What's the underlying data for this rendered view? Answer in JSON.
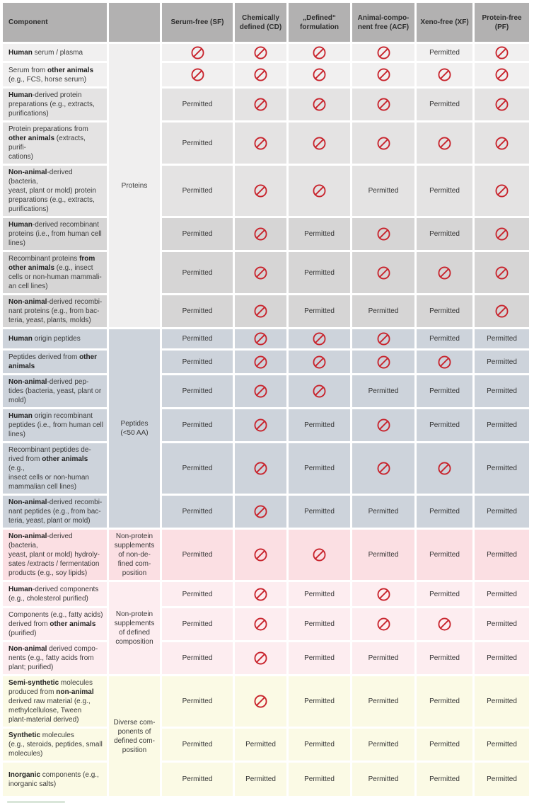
{
  "table": {
    "corner_header": "Component",
    "column_headers": [
      "Serum-free (SF)",
      "Chemically\ndefined (CD)",
      "„Defined“\nformulation",
      "Animal-compo-\nnent free (ACF)",
      "Xeno-free (XF)",
      "Protein-free\n(PF)"
    ],
    "permitted_label": "Permitted",
    "icons": {
      "prohibited": "no-entry-icon"
    },
    "colors": {
      "header_bg": "#b2b1b1",
      "prohibited_red": "#c8232c",
      "cell_border": "#ffffff"
    },
    "groups": [
      {
        "label": "Proteins",
        "cell_bg": "#f0efef",
        "rows": [
          {
            "bg": "#f1f0f0",
            "segments": [
              [
                "Human",
                1
              ],
              [
                " serum / plasma",
                0
              ]
            ],
            "values": [
              "x",
              "x",
              "x",
              "x",
              "p",
              "x"
            ]
          },
          {
            "bg": "#f1f0f0",
            "segments": [
              [
                "Serum from ",
                0
              ],
              [
                "other animals",
                1
              ],
              [
                "\n(e.g., FCS, horse serum)",
                0
              ]
            ],
            "values": [
              "x",
              "x",
              "x",
              "x",
              "x",
              "x"
            ]
          },
          {
            "bg": "#e4e3e3",
            "segments": [
              [
                "Human",
                1
              ],
              [
                "-derived protein\npreparations (e.g., extracts,\npurifications)",
                0
              ]
            ],
            "values": [
              "p",
              "x",
              "x",
              "x",
              "p",
              "x"
            ]
          },
          {
            "bg": "#e4e3e3",
            "segments": [
              [
                "Protein preparations from\n",
                0
              ],
              [
                "other animals",
                1
              ],
              [
                " (extracts, purifi-\ncations)",
                0
              ]
            ],
            "values": [
              "p",
              "x",
              "x",
              "x",
              "x",
              "x"
            ]
          },
          {
            "bg": "#e4e3e3",
            "segments": [
              [
                "Non-animal",
                1
              ],
              [
                "-derived (bacteria,\nyeast, plant or mold) protein\npreparations (e.g., extracts,\npurifications)",
                0
              ]
            ],
            "values": [
              "p",
              "x",
              "x",
              "p",
              "p",
              "x"
            ]
          },
          {
            "bg": "#d6d5d5",
            "segments": [
              [
                "Human",
                1
              ],
              [
                "-derived recombinant\nproteins (i.e., from human cell\nlines)",
                0
              ]
            ],
            "values": [
              "p",
              "x",
              "p",
              "x",
              "p",
              "x"
            ]
          },
          {
            "bg": "#d6d5d5",
            "segments": [
              [
                "Recombinant proteins ",
                0
              ],
              [
                "from\nother animals",
                1
              ],
              [
                " (e.g., insect\ncells or non-human mammali-\nan cell lines)",
                0
              ]
            ],
            "values": [
              "p",
              "x",
              "p",
              "x",
              "x",
              "x"
            ]
          },
          {
            "bg": "#d6d5d5",
            "segments": [
              [
                "Non-animal",
                1
              ],
              [
                "-derived recombi-\nnant proteins (e.g., from bac-\nteria, yeast, plants, molds)",
                0
              ]
            ],
            "values": [
              "p",
              "x",
              "p",
              "p",
              "p",
              "x"
            ]
          }
        ]
      },
      {
        "label": "Peptides\n(<50 AA)",
        "cell_bg": "#cdd3db",
        "rows": [
          {
            "bg": "#cdd3db",
            "segments": [
              [
                "Human",
                1
              ],
              [
                " origin peptides",
                0
              ]
            ],
            "values": [
              "p",
              "x",
              "x",
              "x",
              "p",
              "p"
            ]
          },
          {
            "bg": "#cdd3db",
            "segments": [
              [
                "Peptides derived from ",
                0
              ],
              [
                "other\nanimals",
                1
              ]
            ],
            "values": [
              "p",
              "x",
              "x",
              "x",
              "x",
              "p"
            ]
          },
          {
            "bg": "#cdd3db",
            "segments": [
              [
                "Non-animal",
                1
              ],
              [
                "-derived pep-\ntides (bacteria, yeast, plant or\nmold)",
                0
              ]
            ],
            "values": [
              "p",
              "x",
              "x",
              "p",
              "p",
              "p"
            ]
          },
          {
            "bg": "#cdd3db",
            "segments": [
              [
                "Human",
                1
              ],
              [
                " origin recombinant\npeptides (i.e., from human cell\nlines)",
                0
              ]
            ],
            "values": [
              "p",
              "x",
              "p",
              "x",
              "p",
              "p"
            ]
          },
          {
            "bg": "#cdd3db",
            "segments": [
              [
                "Recombinant peptides de-\nrived from ",
                0
              ],
              [
                "other animals",
                1
              ],
              [
                " (e.g.,\ninsect cells or non-human\nmammalian cell lines)",
                0
              ]
            ],
            "values": [
              "p",
              "x",
              "p",
              "x",
              "x",
              "p"
            ]
          },
          {
            "bg": "#cdd3db",
            "segments": [
              [
                "Non-animal",
                1
              ],
              [
                "-derived recombi-\nnant peptides (e.g., from bac-\nteria, yeast, plant or mold)",
                0
              ]
            ],
            "values": [
              "p",
              "x",
              "p",
              "p",
              "p",
              "p"
            ]
          }
        ]
      },
      {
        "label": "Non-protein\nsupplements\nof non-de-\nfined com-\nposition",
        "cell_bg": "#fbdfe3",
        "rows": [
          {
            "bg": "#fbdfe3",
            "segments": [
              [
                "Non-animal",
                1
              ],
              [
                "-derived (bacteria,\nyeast, plant or mold) hydroly-\nsates /extracts / fermentation\nproducts (e.g., soy lipids)",
                0
              ]
            ],
            "values": [
              "p",
              "x",
              "x",
              "p",
              "p",
              "p"
            ]
          }
        ]
      },
      {
        "label": "Non-protein\nsupplements\nof defined\ncomposition",
        "cell_bg": "#fdedf0",
        "rows": [
          {
            "bg": "#fdedf0",
            "segments": [
              [
                "Human",
                1
              ],
              [
                "-derived components\n(e.g., cholesterol purified)",
                0
              ]
            ],
            "values": [
              "p",
              "x",
              "p",
              "x",
              "p",
              "p"
            ]
          },
          {
            "bg": "#fdedf0",
            "segments": [
              [
                "Components (e.g., fatty acids)\nderived from ",
                0
              ],
              [
                "other animals",
                1
              ],
              [
                "\n(purified)",
                0
              ]
            ],
            "values": [
              "p",
              "x",
              "p",
              "x",
              "x",
              "p"
            ]
          },
          {
            "bg": "#fdedf0",
            "segments": [
              [
                "Non-animal",
                1
              ],
              [
                " derived compo-\nnents (e.g., fatty acids from\nplant; purified)",
                0
              ]
            ],
            "values": [
              "p",
              "x",
              "p",
              "p",
              "p",
              "p"
            ]
          }
        ]
      },
      {
        "label": "Diverse com-\nponents of\ndefined com-\nposition",
        "cell_bg": "#fbfae5",
        "rows": [
          {
            "bg": "#fbfae5",
            "segments": [
              [
                "Semi-synthetic",
                1
              ],
              [
                " molecules\nproduced from ",
                0
              ],
              [
                "non-animal",
                1
              ],
              [
                "\nderived raw material (e.g.,\nmethylcellulose, Tween\nplant-material derived)",
                0
              ]
            ],
            "values": [
              "p",
              "x",
              "p",
              "p",
              "p",
              "p"
            ]
          },
          {
            "bg": "#fbfae5",
            "segments": [
              [
                "Synthetic",
                1
              ],
              [
                " molecules\n(e.g., steroids, peptides, small\nmolecules)",
                0
              ]
            ],
            "values": [
              "p",
              "p",
              "p",
              "p",
              "p",
              "p"
            ]
          },
          {
            "bg": "#fbfae5",
            "segments": [
              [
                "Inorganic",
                1
              ],
              [
                " components (e.g.,\ninorganic salts)",
                0
              ]
            ],
            "values": [
              "p",
              "p",
              "p",
              "p",
              "p",
              "p"
            ]
          }
        ]
      }
    ]
  }
}
